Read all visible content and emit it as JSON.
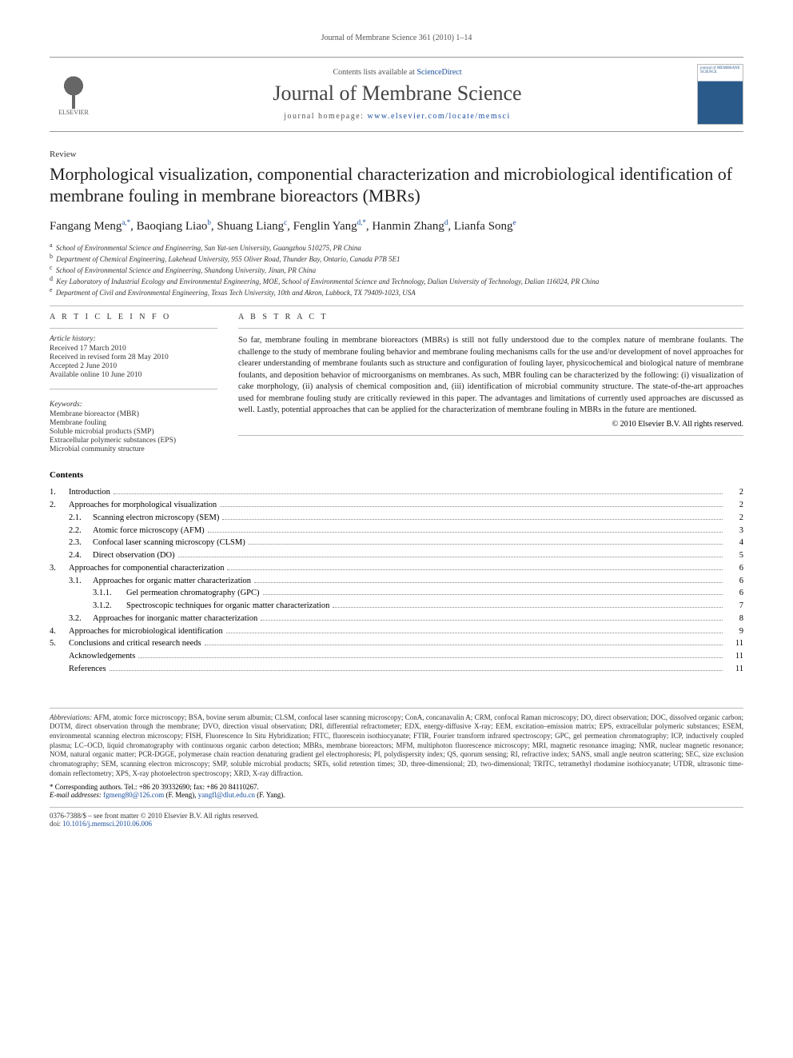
{
  "runningHead": "Journal of Membrane Science 361 (2010) 1–14",
  "header": {
    "contentsLine_pre": "Contents lists available at ",
    "contentsLine_link": "ScienceDirect",
    "journalName": "Journal of Membrane Science",
    "homepage_pre": "journal homepage: ",
    "homepage_link": "www.elsevier.com/locate/memsci",
    "publisher": "ELSEVIER",
    "coverText": "journal of MEMBRANE SCIENCE"
  },
  "sectionLabel": "Review",
  "title": "Morphological visualization, componential characterization and microbiological identification of membrane fouling in membrane bioreactors (MBRs)",
  "authors": [
    {
      "name": "Fangang Meng",
      "sup": "a,*"
    },
    {
      "name": "Baoqiang Liao",
      "sup": "b"
    },
    {
      "name": "Shuang Liang",
      "sup": "c"
    },
    {
      "name": "Fenglin Yang",
      "sup": "d,*"
    },
    {
      "name": "Hanmin Zhang",
      "sup": "d"
    },
    {
      "name": "Lianfa Song",
      "sup": "e"
    }
  ],
  "affiliations": [
    {
      "key": "a",
      "text": "School of Environmental Science and Engineering, Sun Yat-sen University, Guangzhou 510275, PR China"
    },
    {
      "key": "b",
      "text": "Department of Chemical Engineering, Lakehead University, 955 Oliver Road, Thunder Bay, Ontario, Canada P7B 5E1"
    },
    {
      "key": "c",
      "text": "School of Environmental Science and Engineering, Shandong University, Jinan, PR China"
    },
    {
      "key": "d",
      "text": "Key Laboratory of Industrial Ecology and Environmental Engineering, MOE, School of Environmental Science and Technology, Dalian University of Technology, Dalian 116024, PR China"
    },
    {
      "key": "e",
      "text": "Department of Civil and Environmental Engineering, Texas Tech University, 10th and Akron, Lubbock, TX 79409-1023, USA"
    }
  ],
  "articleInfo": {
    "head": "A R T I C L E   I N F O",
    "historyHead": "Article history:",
    "history": [
      "Received 17 March 2010",
      "Received in revised form 28 May 2010",
      "Accepted 2 June 2010",
      "Available online 10 June 2010"
    ],
    "keywordsHead": "Keywords:",
    "keywords": [
      "Membrane bioreactor (MBR)",
      "Membrane fouling",
      "Soluble microbial products (SMP)",
      "Extracellular polymeric substances (EPS)",
      "Microbial community structure"
    ]
  },
  "abstract": {
    "head": "A B S T R A C T",
    "text": "So far, membrane fouling in membrane bioreactors (MBRs) is still not fully understood due to the complex nature of membrane foulants. The challenge to the study of membrane fouling behavior and membrane fouling mechanisms calls for the use and/or development of novel approaches for clearer understanding of membrane foulants such as structure and configuration of fouling layer, physicochemical and biological nature of membrane foulants, and deposition behavior of microorganisms on membranes. As such, MBR fouling can be characterized by the following: (i) visualization of cake morphology, (ii) analysis of chemical composition and, (iii) identification of microbial community structure. The state-of-the-art approaches used for membrane fouling study are critically reviewed in this paper. The advantages and limitations of currently used approaches are discussed as well. Lastly, potential approaches that can be applied for the characterization of membrane fouling in MBRs in the future are mentioned.",
    "copyright": "© 2010 Elsevier B.V. All rights reserved."
  },
  "contents": {
    "head": "Contents",
    "items": [
      {
        "lvl": 1,
        "num": "1.",
        "label": "Introduction",
        "page": "2"
      },
      {
        "lvl": 1,
        "num": "2.",
        "label": "Approaches for morphological visualization",
        "page": "2"
      },
      {
        "lvl": 2,
        "num": "2.1.",
        "label": "Scanning electron microscopy (SEM)",
        "page": "2"
      },
      {
        "lvl": 2,
        "num": "2.2.",
        "label": "Atomic force microscopy (AFM)",
        "page": "3"
      },
      {
        "lvl": 2,
        "num": "2.3.",
        "label": "Confocal laser scanning microscopy (CLSM)",
        "page": "4"
      },
      {
        "lvl": 2,
        "num": "2.4.",
        "label": "Direct observation (DO)",
        "page": "5"
      },
      {
        "lvl": 1,
        "num": "3.",
        "label": "Approaches for componential characterization",
        "page": "6"
      },
      {
        "lvl": 2,
        "num": "3.1.",
        "label": "Approaches for organic matter characterization",
        "page": "6"
      },
      {
        "lvl": 3,
        "num": "3.1.1.",
        "label": "Gel permeation chromatography (GPC)",
        "page": "6"
      },
      {
        "lvl": 3,
        "num": "3.1.2.",
        "label": "Spectroscopic techniques for organic matter characterization",
        "page": "7"
      },
      {
        "lvl": 2,
        "num": "3.2.",
        "label": "Approaches for inorganic matter characterization",
        "page": "8"
      },
      {
        "lvl": 1,
        "num": "4.",
        "label": "Approaches for microbiological identification",
        "page": "9"
      },
      {
        "lvl": 1,
        "num": "5.",
        "label": "Conclusions and critical research needs",
        "page": "11"
      },
      {
        "lvl": 0,
        "num": "",
        "label": "Acknowledgements",
        "page": "11"
      },
      {
        "lvl": 0,
        "num": "",
        "label": "References",
        "page": "11"
      }
    ]
  },
  "abbreviations": {
    "head": "Abbreviations:",
    "text": "AFM, atomic force microscopy; BSA, bovine serum albumin; CLSM, confocal laser scanning microscopy; ConA, concanavalin A; CRM, confocal Raman microscopy; DO, direct observation; DOC, dissolved organic carbon; DOTM, direct observation through the membrane; DVO, direction visual observation; DRI, differential refractometer; EDX, energy-diffusive X-ray; EEM, excitation–emission matrix; EPS, extracellular polymeric substances; ESEM, environmental scanning electron microscopy; FISH, Fluorescence In Situ Hybridization; FITC, fluorescein isothiocyanate; FTIR, Fourier transform infrared spectroscopy; GPC, gel permeation chromatography; ICP, inductively coupled plasma; LC–OCD, liquid chromatography with continuous organic carbon detection; MBRs, membrane bioreactors; MFM, multiphoton fluorescence microscopy; MRI, magnetic resonance imaging; NMR, nuclear magnetic resonance; NOM, natural organic matter; PCR-DGGE, polymerase chain reaction denaturing gradient gel electrophoresis; PI, polydispersity index; QS, quorum sensing; RI, refractive index; SANS, small angle neutron scattering; SEC, size exclusion chromatography; SEM, scanning electron microscopy; SMP, soluble microbial products; SRTs, solid retention times; 3D, three-dimensional; 2D, two-dimensional; TRITC, tetramethyl rhodamine isothiocyanate; UTDR, ultrasonic time-domain reflectometry; XPS, X-ray photoelectron spectroscopy; XRD, X-ray diffraction."
  },
  "corresponding": {
    "star": "* ",
    "line": "Corresponding authors. Tel.: +86 20 39332690; fax: +86 20 84110267.",
    "emailHead": "E-mail addresses: ",
    "email1": "fgmeng80@126.com",
    "email1_tail": " (F. Meng), ",
    "email2": "yangfl@dlut.edu.cn",
    "email2_tail": " (F. Yang)."
  },
  "footer": {
    "line1": "0376-7388/$ – see front matter © 2010 Elsevier B.V. All rights reserved.",
    "doiLabel": "doi:",
    "doi": "10.1016/j.memsci.2010.06.006"
  },
  "colors": {
    "link": "#1a4f9c",
    "text": "#222222",
    "rule": "#bbbbbb"
  }
}
